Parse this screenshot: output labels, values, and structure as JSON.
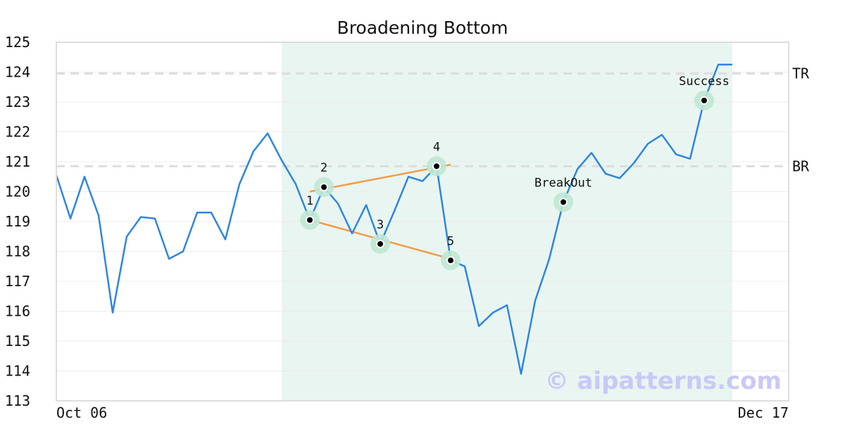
{
  "chart_data": {
    "type": "line",
    "title": "Broadening Bottom",
    "ylim": [
      113,
      125
    ],
    "y_ticks": [
      113,
      114,
      115,
      116,
      117,
      118,
      119,
      120,
      121,
      122,
      123,
      124,
      125
    ],
    "x_tick_labels": [
      {
        "index": 0,
        "label": "Oct 06"
      },
      {
        "index": 48,
        "label": "Dec 17"
      }
    ],
    "grid": "horizontal",
    "colors": {
      "line": "#2e86de",
      "trend": "#f39c45",
      "highlight": "#e9f5f1",
      "marker_halo": "#bfe8d4",
      "ref_line": "#dddddd",
      "frame": "#dddddd",
      "watermark": "#c9c9f7"
    },
    "series": [
      {
        "values": [
          120.55,
          119.1,
          120.5,
          119.2,
          115.95,
          118.5,
          119.15,
          119.1,
          117.75,
          118.0,
          119.3,
          119.3,
          118.4,
          120.25,
          121.35,
          121.95,
          121.05,
          120.25,
          119.05,
          120.15,
          119.6,
          118.6,
          119.55,
          118.25,
          119.35,
          120.5,
          120.35,
          120.85,
          117.7,
          117.5,
          115.5,
          115.95,
          116.2,
          113.9,
          116.35,
          117.75,
          119.65,
          120.75,
          121.3,
          120.6,
          120.45,
          120.95,
          121.6,
          121.9,
          121.25,
          121.1,
          123.05,
          124.25,
          124.25
        ]
      }
    ],
    "highlight_range": {
      "from_index": 16,
      "to_index": 48
    },
    "reference_lines": [
      {
        "label": "TR",
        "value": 123.95
      },
      {
        "label": "BR",
        "value": 120.85
      }
    ],
    "trend_lines": [
      {
        "from": {
          "index": 18,
          "value": 120.0
        },
        "to": {
          "index": 28,
          "value": 120.9
        }
      },
      {
        "from": {
          "index": 18,
          "value": 119.05
        },
        "to": {
          "index": 28,
          "value": 117.75
        }
      }
    ],
    "points": [
      {
        "label": "1",
        "index": 18,
        "value": 119.05,
        "label_pos": "above"
      },
      {
        "label": "2",
        "index": 19,
        "value": 120.15,
        "label_pos": "above"
      },
      {
        "label": "3",
        "index": 23,
        "value": 118.25,
        "label_pos": "above"
      },
      {
        "label": "4",
        "index": 27,
        "value": 120.85,
        "label_pos": "above"
      },
      {
        "label": "5",
        "index": 28,
        "value": 117.7,
        "label_pos": "above"
      },
      {
        "label": "BreakOut",
        "index": 36,
        "value": 119.65,
        "label_pos": "above"
      },
      {
        "label": "Success",
        "index": 46,
        "value": 123.05,
        "label_pos": "above"
      }
    ],
    "watermark": "© aipatterns.com"
  }
}
